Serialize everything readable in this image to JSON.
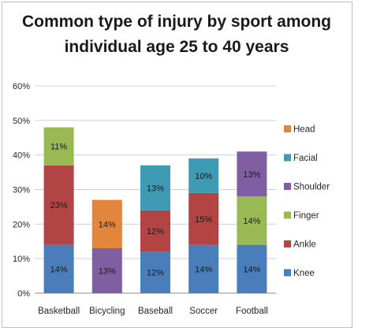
{
  "chart_data": {
    "type": "bar",
    "stacked": true,
    "title_lines": [
      "Common type of injury by sport among",
      "individual age 25 to 40 years"
    ],
    "categories": [
      "Basketball",
      "Bicycling",
      "Baseball",
      "Soccer",
      "Football"
    ],
    "ylim": [
      0,
      60
    ],
    "yticks": [
      0,
      10,
      20,
      30,
      40,
      50,
      60
    ],
    "ytick_labels": [
      "0%",
      "10%",
      "20%",
      "30%",
      "40%",
      "50%",
      "60%"
    ],
    "grid": true,
    "legend_position": "right",
    "legend_order": [
      "Head",
      "Facial",
      "Shoulder",
      "Finger",
      "Ankle",
      "Knee"
    ],
    "series": [
      {
        "name": "Knee",
        "color": "#4a7ebb",
        "values": [
          14,
          null,
          12,
          14,
          14
        ],
        "labels": [
          "14%",
          "",
          "12%",
          "14%",
          "14%"
        ]
      },
      {
        "name": "Shoulder",
        "color": "#7f5fa1",
        "values": [
          null,
          13,
          null,
          null,
          null
        ],
        "labels": [
          "",
          "13%",
          "",
          "",
          ""
        ]
      },
      {
        "name": "Ankle",
        "color": "#b24543",
        "values": [
          23,
          null,
          12,
          15,
          null
        ],
        "labels": [
          "23%",
          "",
          "12%",
          "15%",
          ""
        ]
      },
      {
        "name": "Finger",
        "color": "#98b954",
        "values": [
          11,
          null,
          null,
          null,
          14
        ],
        "labels": [
          "11%",
          "",
          "",
          "",
          "14%"
        ]
      },
      {
        "name": "Head",
        "color": "#e2863d",
        "values": [
          null,
          14,
          null,
          null,
          null
        ],
        "labels": [
          "",
          "14%",
          "",
          "",
          ""
        ]
      },
      {
        "name": "Facial",
        "color": "#3e9bb3",
        "values": [
          null,
          null,
          13,
          10,
          null
        ],
        "labels": [
          "",
          "",
          "13%",
          "10%",
          ""
        ]
      },
      {
        "name": "Shoulder",
        "color": "#7f5fa1",
        "values": [
          null,
          null,
          null,
          null,
          13
        ],
        "labels": [
          "",
          "",
          "",
          "",
          "13%"
        ]
      }
    ],
    "legend_colors": {
      "Head": "#e2863d",
      "Facial": "#3e9bb3",
      "Shoulder": "#7f5fa1",
      "Finger": "#98b954",
      "Ankle": "#b24543",
      "Knee": "#4a7ebb"
    }
  }
}
